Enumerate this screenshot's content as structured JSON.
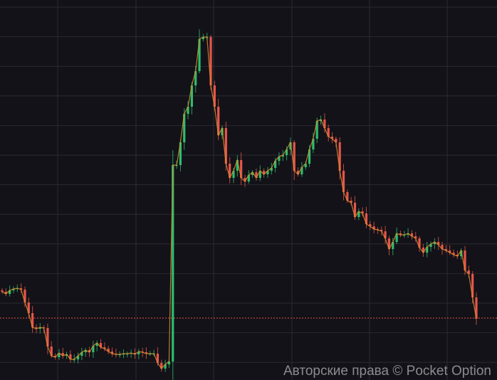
{
  "chart_data": {
    "type": "candlestick",
    "title": "",
    "xlabel": "",
    "ylabel": "",
    "ylim": [
      0,
      53.4
    ],
    "grid": true,
    "first_open": 12.6,
    "close": [
      12.4,
      12.1,
      12.6,
      12.8,
      12.9,
      12.7,
      10.9,
      9.4,
      7.4,
      7.2,
      7.4,
      7.3,
      4.7,
      3.4,
      3.2,
      3.8,
      3.4,
      3.6,
      2.9,
      2.9,
      3.4,
      3.9,
      4.2,
      3.9,
      4.8,
      5.2,
      4.6,
      4.4,
      4.0,
      3.7,
      3.6,
      3.6,
      3.7,
      3.7,
      3.8,
      3.6,
      4.0,
      3.9,
      3.7,
      3.7,
      3.7,
      2.4,
      1.6,
      2.2,
      2.6,
      30.2,
      30.2,
      33.4,
      37.4,
      38.4,
      41.4,
      43.4,
      47.9,
      48.2,
      48.2,
      41.4,
      38.4,
      34.4,
      35.4,
      30.4,
      28.4,
      29.4,
      30.9,
      28.4,
      27.9,
      28.8,
      29.2,
      28.4,
      29.4,
      28.9,
      29.4,
      29.8,
      30.8,
      31.4,
      31.6,
      32.4,
      33.4,
      29.4,
      28.9,
      29.9,
      30.4,
      32.4,
      33.9,
      36.4,
      36.6,
      35.4,
      34.2,
      33.9,
      33.4,
      29.4,
      26.4,
      25.2,
      24.9,
      22.9,
      23.7,
      23.4,
      21.9,
      21.6,
      21.2,
      21.1,
      20.9,
      19.9,
      18.4,
      19.4,
      20.6,
      20.4,
      20.4,
      20.6,
      20.2,
      19.9,
      18.6,
      17.9,
      18.7,
      19.1,
      19.4,
      19.0,
      18.4,
      18.2,
      17.9,
      17.6,
      17.4,
      18.2,
      15.4,
      14.9,
      11.6,
      8.6
    ],
    "current_price": 8.7,
    "colors": {
      "background": "#131218",
      "grid": "#2a2a30",
      "up": "#2dbd6e",
      "down": "#e8554a",
      "line": "#d9902e",
      "current_price_line": "#e0554a"
    }
  },
  "watermark": "Авторские права © Pocket Option"
}
